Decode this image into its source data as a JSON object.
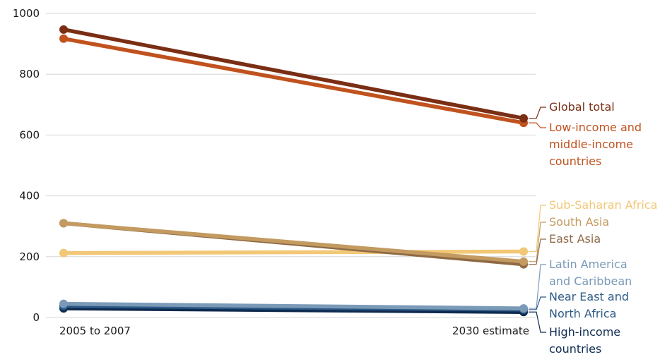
{
  "chart_data": {
    "type": "line",
    "title": "",
    "xlabel": "",
    "ylabel": "",
    "categories": [
      "2005 to 2007",
      "2030 estimate"
    ],
    "ylim": [
      0,
      1000
    ],
    "yticks": [
      0,
      200,
      400,
      600,
      800,
      1000
    ],
    "grid": true,
    "legend": "direct labels on right",
    "series": [
      {
        "name": "Global total",
        "values": [
          947,
          655
        ],
        "color": "#7a2e14"
      },
      {
        "name": "Low-income and middle-income countries",
        "values": [
          917,
          640
        ],
        "color": "#c0521e"
      },
      {
        "name": "Sub-Saharan Africa",
        "values": [
          212,
          217
        ],
        "color": "#f2c776"
      },
      {
        "name": "South Asia",
        "values": [
          310,
          184
        ],
        "color": "#c39a60"
      },
      {
        "name": "East Asia",
        "values": [
          310,
          175
        ],
        "color": "#8e6a45"
      },
      {
        "name": "Latin America and Caribbean",
        "values": [
          45,
          30
        ],
        "color": "#7a9ab8"
      },
      {
        "name": "Near East and North Africa",
        "values": [
          38,
          26
        ],
        "color": "#2e5a86"
      },
      {
        "name": "High-income countries",
        "values": [
          30,
          18
        ],
        "color": "#0f2b50"
      }
    ],
    "labels": [
      {
        "series": 0,
        "lines": [
          "Global total"
        ]
      },
      {
        "series": 1,
        "lines": [
          "Low-income and",
          "middle-income",
          "countries"
        ]
      },
      {
        "series": 2,
        "lines": [
          "Sub-Saharan Africa"
        ]
      },
      {
        "series": 3,
        "lines": [
          "South Asia"
        ]
      },
      {
        "series": 4,
        "lines": [
          "East Asia"
        ]
      },
      {
        "series": 5,
        "lines": [
          "Latin America",
          "and Caribbean"
        ]
      },
      {
        "series": 6,
        "lines": [
          "Near East and",
          "North Africa"
        ]
      },
      {
        "series": 7,
        "lines": [
          "High-income",
          "countries"
        ]
      }
    ]
  }
}
